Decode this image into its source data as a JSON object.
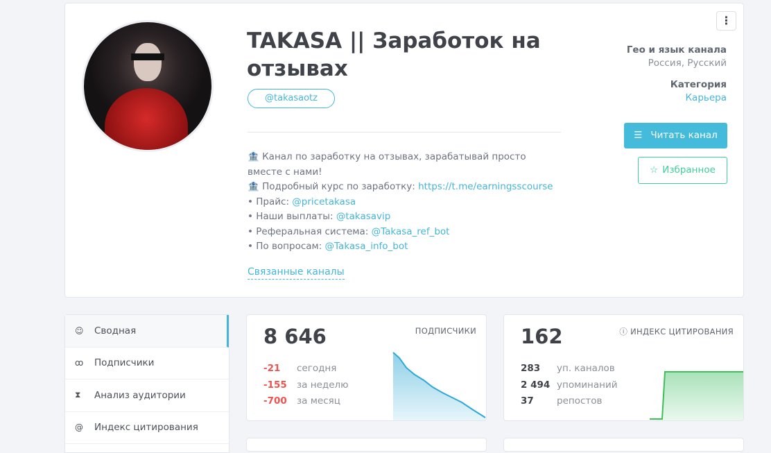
{
  "channel": {
    "title": "TAKASA || Заработок на отзывах",
    "handle": "@takasaotz",
    "description": [
      {
        "text": "🏦 Канал по заработку на отзывах, зарабатывай просто вместе с нами!",
        "link": ""
      },
      {
        "text": "🏦 Подробный курс по заработку: ",
        "link": "https://t.me/earningsscourse"
      },
      {
        "text": "• Прайс: ",
        "link": "@pricetakasa"
      },
      {
        "text": "• Наши выплаты: ",
        "link": "@takasavip"
      },
      {
        "text": "• Реферальная система: ",
        "link": "@Takasa_ref_bot"
      },
      {
        "text": "• По вопросам: ",
        "link": "@Takasa_info_bot"
      }
    ],
    "related_label": "Связанные каналы",
    "geo_label": "Гео и язык канала",
    "geo_value": "Россия, Русский",
    "category_label": "Категория",
    "category_value": "Карьера",
    "read_button": "Читать канал",
    "favorite_button": "Избранное",
    "menu_icon": "⋮"
  },
  "sidebar": {
    "items": [
      {
        "label": "Сводная",
        "icon": "dashboard-icon",
        "active": true
      },
      {
        "label": "Подписчики",
        "icon": "users-icon"
      },
      {
        "label": "Анализ аудитории",
        "icon": "hourglass-icon"
      },
      {
        "label": "Индекс цитирования",
        "icon": "at-icon"
      }
    ]
  },
  "subscribers": {
    "label": "ПОДПИСЧИКИ",
    "value": "8 646",
    "rows": [
      {
        "n": "-21",
        "t": "сегодня"
      },
      {
        "n": "-155",
        "t": "за неделю"
      },
      {
        "n": "-700",
        "t": "за месяц"
      }
    ],
    "color": "#ef5350",
    "line_color": "#2ea8d4"
  },
  "citation": {
    "label": "ИНДЕКС ЦИТИРОВАНИЯ",
    "value": "162",
    "rows": [
      {
        "n": "283",
        "t": "уп. каналов"
      },
      {
        "n": "2 494",
        "t": "упоминаний"
      },
      {
        "n": "37",
        "t": "репостов"
      }
    ],
    "line_color": "#3cbf5a"
  }
}
